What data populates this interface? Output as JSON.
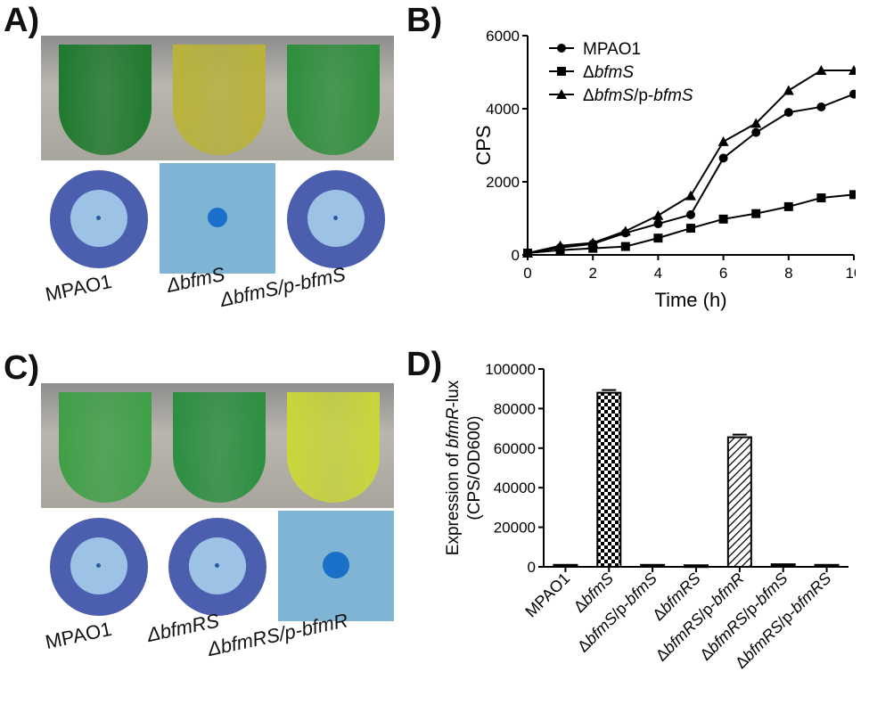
{
  "panels": {
    "a": {
      "letter": "A)",
      "strains": [
        "MPAO1",
        "ΔbfmS",
        "ΔbfmS/p-bfmS"
      ]
    },
    "b": {
      "letter": "B)"
    },
    "c": {
      "letter": "C)",
      "strains": [
        "MPAO1",
        "ΔbfmRS",
        "ΔbfmRS/p-bfmR"
      ]
    },
    "d": {
      "letter": "D)"
    }
  },
  "colors": {
    "a_tubes": [
      "#1f7a2e",
      "#b8b33a",
      "#2e8f3c"
    ],
    "c_tubes": [
      "#3fa047",
      "#2b8f40",
      "#c9d63a"
    ],
    "dish_bg": "#4b5fae",
    "halo": "#9cc3e6",
    "spot": "#1a6fc9",
    "plate_open": "#7fb4d4"
  },
  "chart_data": [
    {
      "type": "line",
      "ylabel": "CPS",
      "xlabel": "Time (h)",
      "xlim": [
        0,
        10
      ],
      "ylim": [
        0,
        6000
      ],
      "xticks": [
        0,
        2,
        4,
        6,
        8,
        10
      ],
      "yticks": [
        0,
        2000,
        4000,
        6000
      ],
      "legend_position": "top-left",
      "series": [
        {
          "name": "MPAO1",
          "marker": "circle",
          "x": [
            0,
            1,
            2,
            3,
            4,
            5,
            6,
            7,
            8,
            9,
            10
          ],
          "values": [
            50,
            200,
            300,
            600,
            850,
            1100,
            2650,
            3350,
            3900,
            4050,
            4400
          ]
        },
        {
          "name": "ΔbfmS",
          "marker": "square",
          "x": [
            0,
            1,
            2,
            3,
            4,
            5,
            6,
            7,
            8,
            9,
            10
          ],
          "values": [
            50,
            130,
            180,
            230,
            460,
            730,
            980,
            1130,
            1320,
            1560,
            1650
          ]
        },
        {
          "name": "ΔbfmS/p-bfmS",
          "marker": "triangle",
          "x": [
            0,
            1,
            2,
            3,
            4,
            5,
            6,
            7,
            8,
            9,
            10
          ],
          "values": [
            50,
            250,
            330,
            650,
            1080,
            1620,
            3100,
            3600,
            4500,
            5050,
            5050
          ]
        }
      ]
    },
    {
      "type": "bar",
      "ylabel": "Expression of bfmR-lux",
      "ylabel2": "(CPS/OD600)",
      "ylim": [
        0,
        100000
      ],
      "yticks": [
        0,
        20000,
        40000,
        60000,
        80000,
        100000
      ],
      "categories": [
        "MPAO1",
        "ΔbfmS",
        "ΔbfmS/p-bfmS",
        "ΔbfmRS",
        "ΔbfmRS/p-bfmR",
        "ΔbfmRS/p-bfmS",
        "ΔbfmRS/p-bfmRS"
      ],
      "values": [
        1000,
        88000,
        1000,
        800,
        65500,
        1300,
        1000
      ],
      "fills": [
        "solid",
        "checker",
        "solid",
        "solid",
        "hatch",
        "solid",
        "solid"
      ]
    }
  ]
}
